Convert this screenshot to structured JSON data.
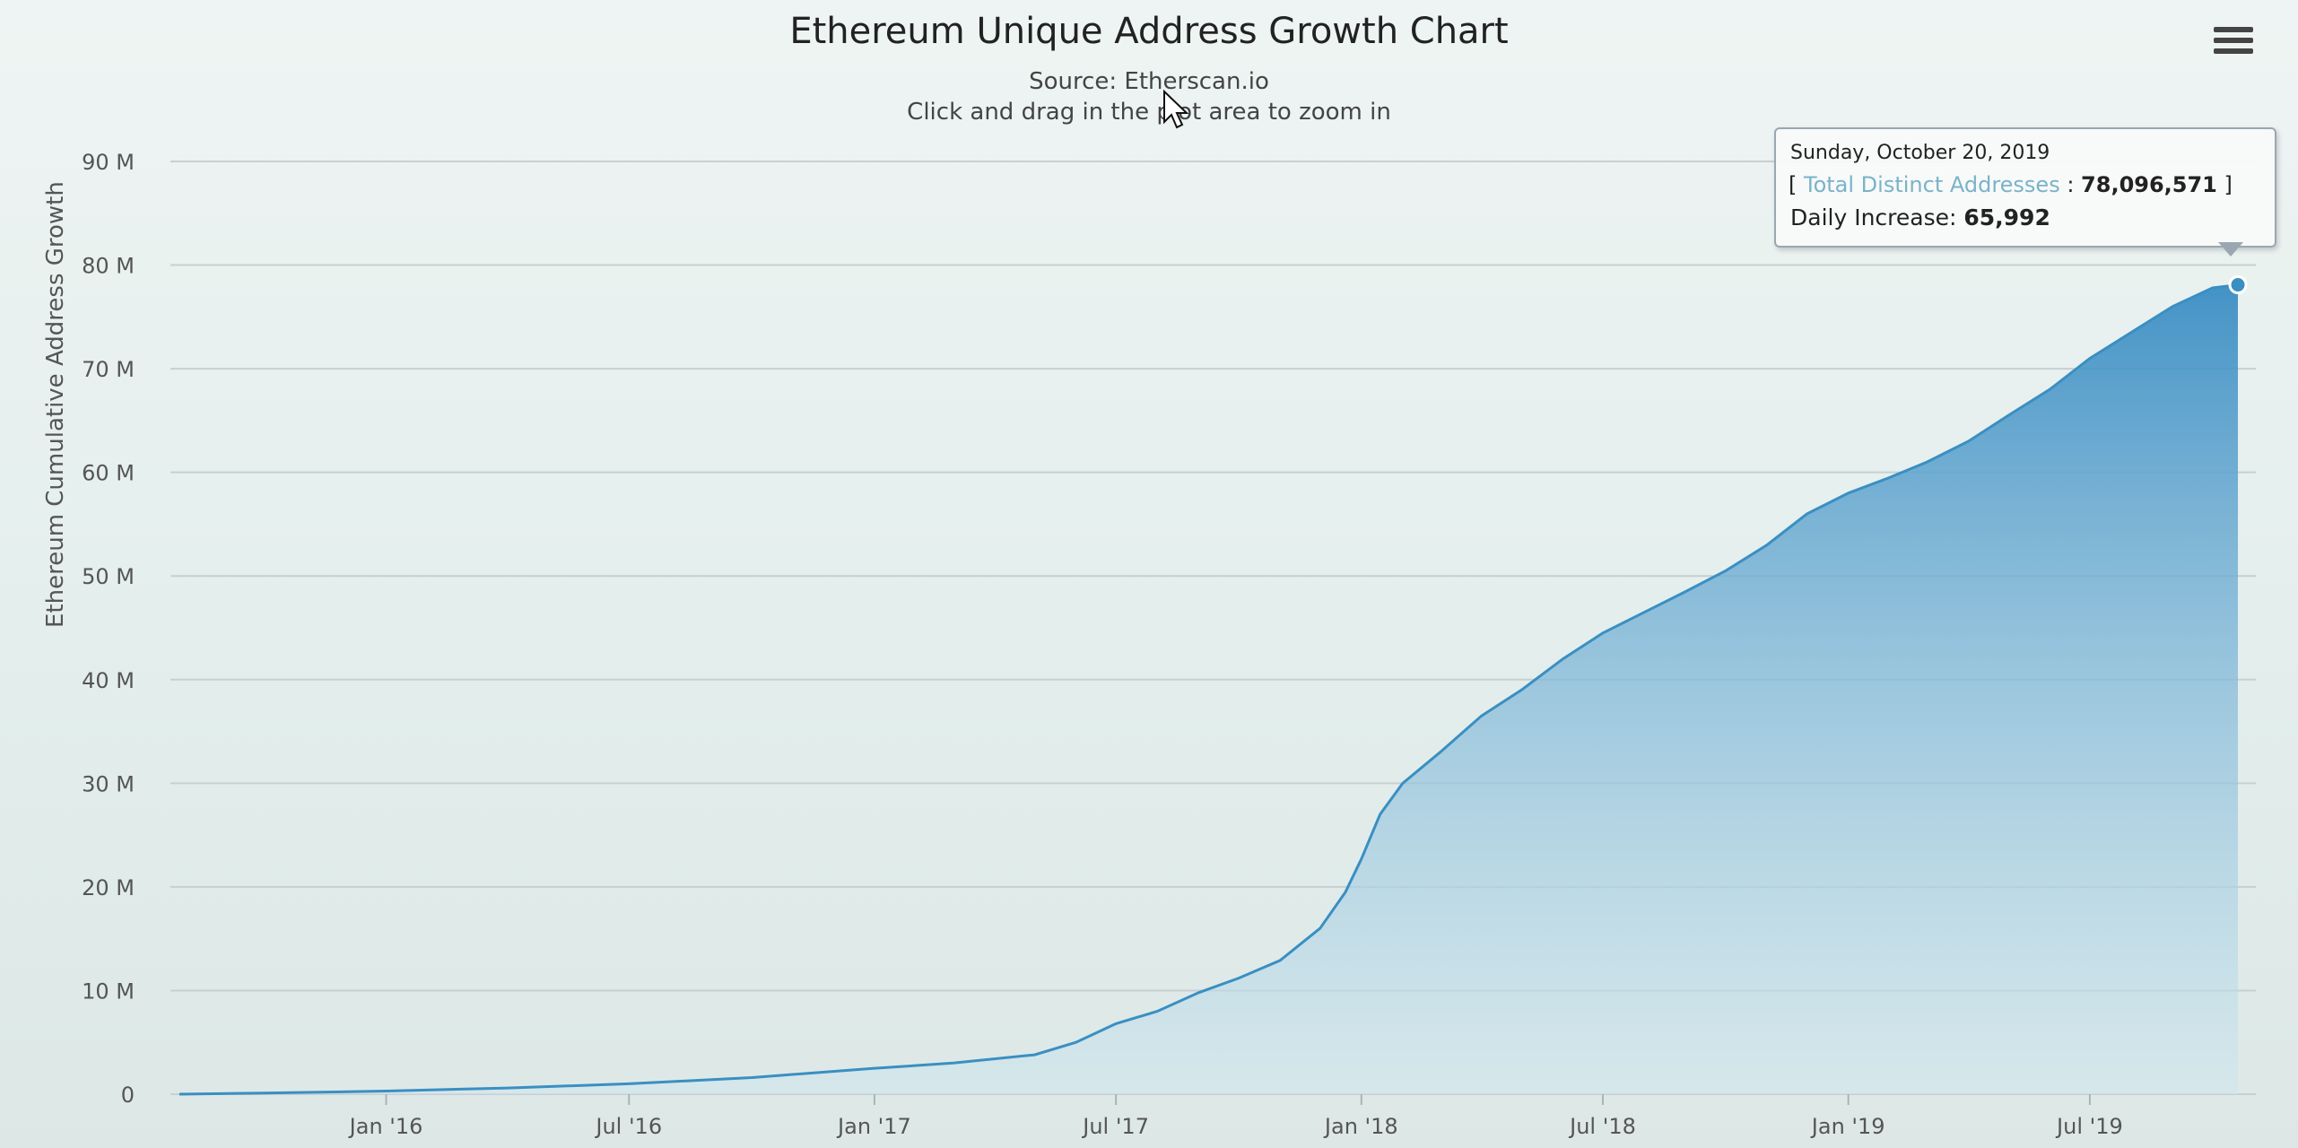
{
  "header": {
    "title": "Ethereum Unique Address Growth Chart",
    "subtitle_source": "Source: Etherscan.io",
    "subtitle_hint": "Click and drag in the plot area to zoom in",
    "menu_icon": "hamburger-menu-icon"
  },
  "tooltip": {
    "date": "Sunday, October 20, 2019",
    "series_prefix": "[ ",
    "series_name": "Total Distinct Addresses",
    "series_sep": " : ",
    "series_value": "78,096,571",
    "series_suffix": " ]",
    "increase_label": "Daily Increase: ",
    "increase_value": "65,992"
  },
  "colors": {
    "area_top": "#3b8ec4",
    "area_bottom": "#cfe6ee",
    "line": "#3a8fc2",
    "grid": "#c7cfd2"
  },
  "chart_data": {
    "type": "area",
    "title": "Ethereum Unique Address Growth Chart",
    "subtitle": "Source: Etherscan.io",
    "ylabel": "Ethereum Cumulative Address Growth",
    "xlabel": "",
    "ylim": [
      0,
      90000000
    ],
    "yticks": [
      {
        "value": 0,
        "label": "0"
      },
      {
        "value": 10000000,
        "label": "10 M"
      },
      {
        "value": 20000000,
        "label": "20 M"
      },
      {
        "value": 30000000,
        "label": "30 M"
      },
      {
        "value": 40000000,
        "label": "40 M"
      },
      {
        "value": 50000000,
        "label": "50 M"
      },
      {
        "value": 60000000,
        "label": "60 M"
      },
      {
        "value": 70000000,
        "label": "70 M"
      },
      {
        "value": 80000000,
        "label": "80 M"
      },
      {
        "value": 90000000,
        "label": "90 M"
      }
    ],
    "xlim": [
      "2015-07-30",
      "2019-10-20"
    ],
    "xticks": [
      {
        "value": "2016-01-01",
        "label": "Jan '16"
      },
      {
        "value": "2016-07-01",
        "label": "Jul '16"
      },
      {
        "value": "2017-01-01",
        "label": "Jan '17"
      },
      {
        "value": "2017-07-01",
        "label": "Jul '17"
      },
      {
        "value": "2018-01-01",
        "label": "Jan '18"
      },
      {
        "value": "2018-07-01",
        "label": "Jul '18"
      },
      {
        "value": "2019-01-01",
        "label": "Jan '19"
      },
      {
        "value": "2019-07-01",
        "label": "Jul '19"
      }
    ],
    "grid": true,
    "legend": "none",
    "series": [
      {
        "name": "Total Distinct Addresses",
        "x": [
          "2015-07-30",
          "2015-10-01",
          "2016-01-01",
          "2016-04-01",
          "2016-07-01",
          "2016-10-01",
          "2017-01-01",
          "2017-03-01",
          "2017-05-01",
          "2017-06-01",
          "2017-07-01",
          "2017-08-01",
          "2017-09-01",
          "2017-10-01",
          "2017-11-01",
          "2017-12-01",
          "2017-12-20",
          "2018-01-01",
          "2018-01-15",
          "2018-02-01",
          "2018-03-01",
          "2018-04-01",
          "2018-05-01",
          "2018-06-01",
          "2018-07-01",
          "2018-08-01",
          "2018-09-01",
          "2018-10-01",
          "2018-11-01",
          "2018-12-01",
          "2019-01-01",
          "2019-02-01",
          "2019-03-01",
          "2019-04-01",
          "2019-05-01",
          "2019-06-01",
          "2019-07-01",
          "2019-08-01",
          "2019-09-01",
          "2019-10-01",
          "2019-10-20"
        ],
        "y": [
          0,
          100000,
          300000,
          600000,
          1000000,
          1600000,
          2500000,
          3000000,
          3800000,
          5000000,
          6800000,
          8000000,
          9800000,
          11200000,
          12900000,
          16000000,
          19500000,
          22700000,
          27000000,
          30000000,
          33000000,
          36500000,
          39000000,
          42000000,
          44500000,
          46500000,
          48500000,
          50500000,
          53000000,
          56000000,
          58000000,
          59500000,
          61000000,
          63000000,
          65500000,
          68000000,
          71000000,
          73500000,
          76000000,
          77800000,
          78096571
        ]
      }
    ],
    "highlight": {
      "x": "2019-10-20",
      "y": 78096571
    }
  }
}
